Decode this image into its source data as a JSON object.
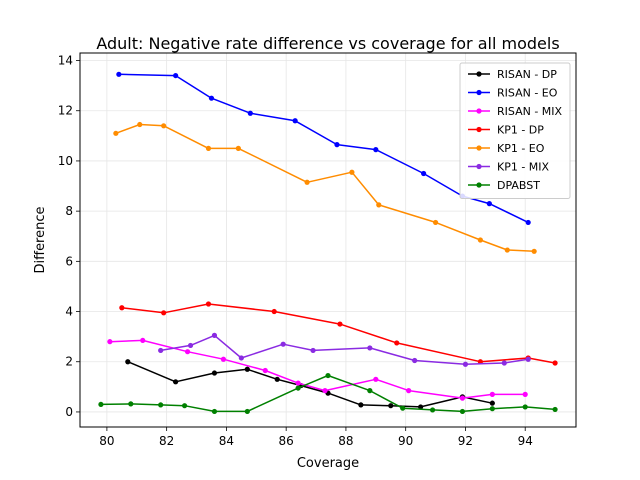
{
  "chart_data": {
    "type": "line",
    "title": "Adult: Negative rate difference vs coverage for all models",
    "xlabel": "Coverage",
    "ylabel": "Difference",
    "xlim": [
      79.1,
      95.7
    ],
    "ylim": [
      -0.6,
      14.3
    ],
    "xticks": [
      "80",
      "82",
      "84",
      "86",
      "88",
      "90",
      "92",
      "94"
    ],
    "yticks": [
      "0",
      "2",
      "4",
      "6",
      "8",
      "10",
      "12",
      "14"
    ],
    "grid": true,
    "legend_position": "top-right",
    "series": [
      {
        "name": "RISAN - DP",
        "color": "#000000",
        "points": [
          [
            80.7,
            2.0
          ],
          [
            82.3,
            1.2
          ],
          [
            83.6,
            1.55
          ],
          [
            84.7,
            1.7
          ],
          [
            85.7,
            1.3
          ],
          [
            86.5,
            1.05
          ],
          [
            87.4,
            0.75
          ],
          [
            88.5,
            0.28
          ],
          [
            89.5,
            0.25
          ],
          [
            90.5,
            0.2
          ],
          [
            91.9,
            0.6
          ],
          [
            92.9,
            0.35
          ]
        ]
      },
      {
        "name": "RISAN - EO",
        "color": "#0000ff",
        "points": [
          [
            80.4,
            13.45
          ],
          [
            82.3,
            13.4
          ],
          [
            83.5,
            12.5
          ],
          [
            84.8,
            11.9
          ],
          [
            86.3,
            11.6
          ],
          [
            87.7,
            10.65
          ],
          [
            89.0,
            10.45
          ],
          [
            90.6,
            9.5
          ],
          [
            91.9,
            8.6
          ],
          [
            92.8,
            8.3
          ],
          [
            94.1,
            7.55
          ]
        ]
      },
      {
        "name": "RISAN - MIX",
        "color": "#ff00ff",
        "points": [
          [
            80.1,
            2.8
          ],
          [
            81.2,
            2.85
          ],
          [
            82.7,
            2.4
          ],
          [
            83.9,
            2.1
          ],
          [
            85.3,
            1.65
          ],
          [
            86.4,
            1.15
          ],
          [
            87.3,
            0.85
          ],
          [
            89.0,
            1.3
          ],
          [
            90.1,
            0.85
          ],
          [
            91.9,
            0.55
          ],
          [
            92.9,
            0.7
          ],
          [
            94.0,
            0.7
          ]
        ]
      },
      {
        "name": "KP1 - DP",
        "color": "#ff0000",
        "points": [
          [
            80.5,
            4.15
          ],
          [
            81.9,
            3.95
          ],
          [
            83.4,
            4.3
          ],
          [
            85.6,
            4.0
          ],
          [
            87.8,
            3.5
          ],
          [
            89.7,
            2.75
          ],
          [
            92.5,
            2.0
          ],
          [
            94.1,
            2.15
          ],
          [
            95.0,
            1.95
          ]
        ]
      },
      {
        "name": "KP1 - EO",
        "color": "#ff8c00",
        "points": [
          [
            80.3,
            11.1
          ],
          [
            81.1,
            11.45
          ],
          [
            81.9,
            11.4
          ],
          [
            83.4,
            10.5
          ],
          [
            84.4,
            10.5
          ],
          [
            86.7,
            9.15
          ],
          [
            88.2,
            9.55
          ],
          [
            89.1,
            8.25
          ],
          [
            91.0,
            7.55
          ],
          [
            92.5,
            6.85
          ],
          [
            93.4,
            6.45
          ],
          [
            94.3,
            6.4
          ]
        ]
      },
      {
        "name": "KP1 - MIX",
        "color": "#8a2be2",
        "points": [
          [
            81.8,
            2.45
          ],
          [
            82.8,
            2.65
          ],
          [
            83.6,
            3.05
          ],
          [
            84.5,
            2.15
          ],
          [
            85.9,
            2.7
          ],
          [
            86.9,
            2.45
          ],
          [
            88.8,
            2.55
          ],
          [
            90.3,
            2.05
          ],
          [
            92.0,
            1.9
          ],
          [
            93.3,
            1.95
          ],
          [
            94.1,
            2.1
          ]
        ]
      },
      {
        "name": "DPABST",
        "color": "#008000",
        "points": [
          [
            79.8,
            0.3
          ],
          [
            80.8,
            0.32
          ],
          [
            81.8,
            0.28
          ],
          [
            82.6,
            0.25
          ],
          [
            83.6,
            0.02
          ],
          [
            84.7,
            0.02
          ],
          [
            86.4,
            0.95
          ],
          [
            87.4,
            1.45
          ],
          [
            88.8,
            0.85
          ],
          [
            89.9,
            0.15
          ],
          [
            90.9,
            0.08
          ],
          [
            91.9,
            0.02
          ],
          [
            92.9,
            0.13
          ],
          [
            94.0,
            0.2
          ],
          [
            95.0,
            0.1
          ]
        ]
      }
    ]
  }
}
